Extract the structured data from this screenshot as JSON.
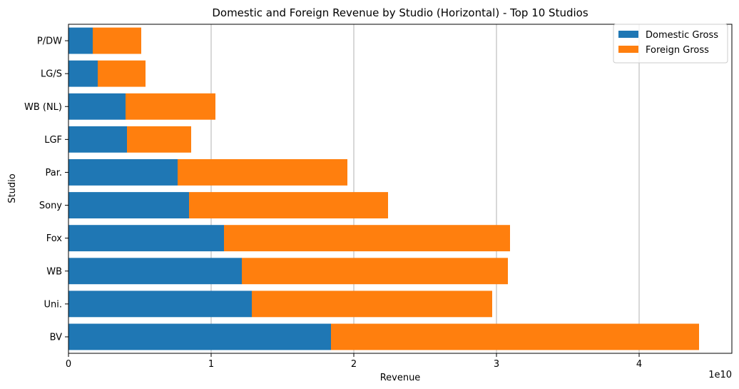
{
  "chart_data": {
    "type": "bar",
    "orientation": "horizontal",
    "stacked": true,
    "title": "Domestic and Foreign Revenue by Studio (Horizontal) - Top 10 Studios",
    "xlabel": "Revenue",
    "ylabel": "Studio",
    "x_offset_label": "1e10",
    "xlim": [
      0,
      4.65
    ],
    "xticks": [
      0,
      1,
      2,
      3,
      4
    ],
    "xticklabels": [
      "0",
      "1",
      "2",
      "3",
      "4"
    ],
    "grid": "x",
    "legend_position": "upper right",
    "categories": [
      "BV",
      "Uni.",
      "WB",
      "Fox",
      "Sony",
      "Par.",
      "LGF",
      "WB (NL)",
      "LG/S",
      "P/DW"
    ],
    "series": [
      {
        "name": "Domestic Gross",
        "color": "#1f77b4",
        "values": [
          1.84,
          1.285,
          1.215,
          1.09,
          0.845,
          0.765,
          0.41,
          0.4,
          0.205,
          0.17
        ]
      },
      {
        "name": "Foreign Gross",
        "color": "#ff7f0e",
        "values": [
          2.58,
          1.685,
          1.865,
          2.005,
          1.395,
          1.19,
          0.45,
          0.63,
          0.335,
          0.34
        ]
      }
    ]
  }
}
